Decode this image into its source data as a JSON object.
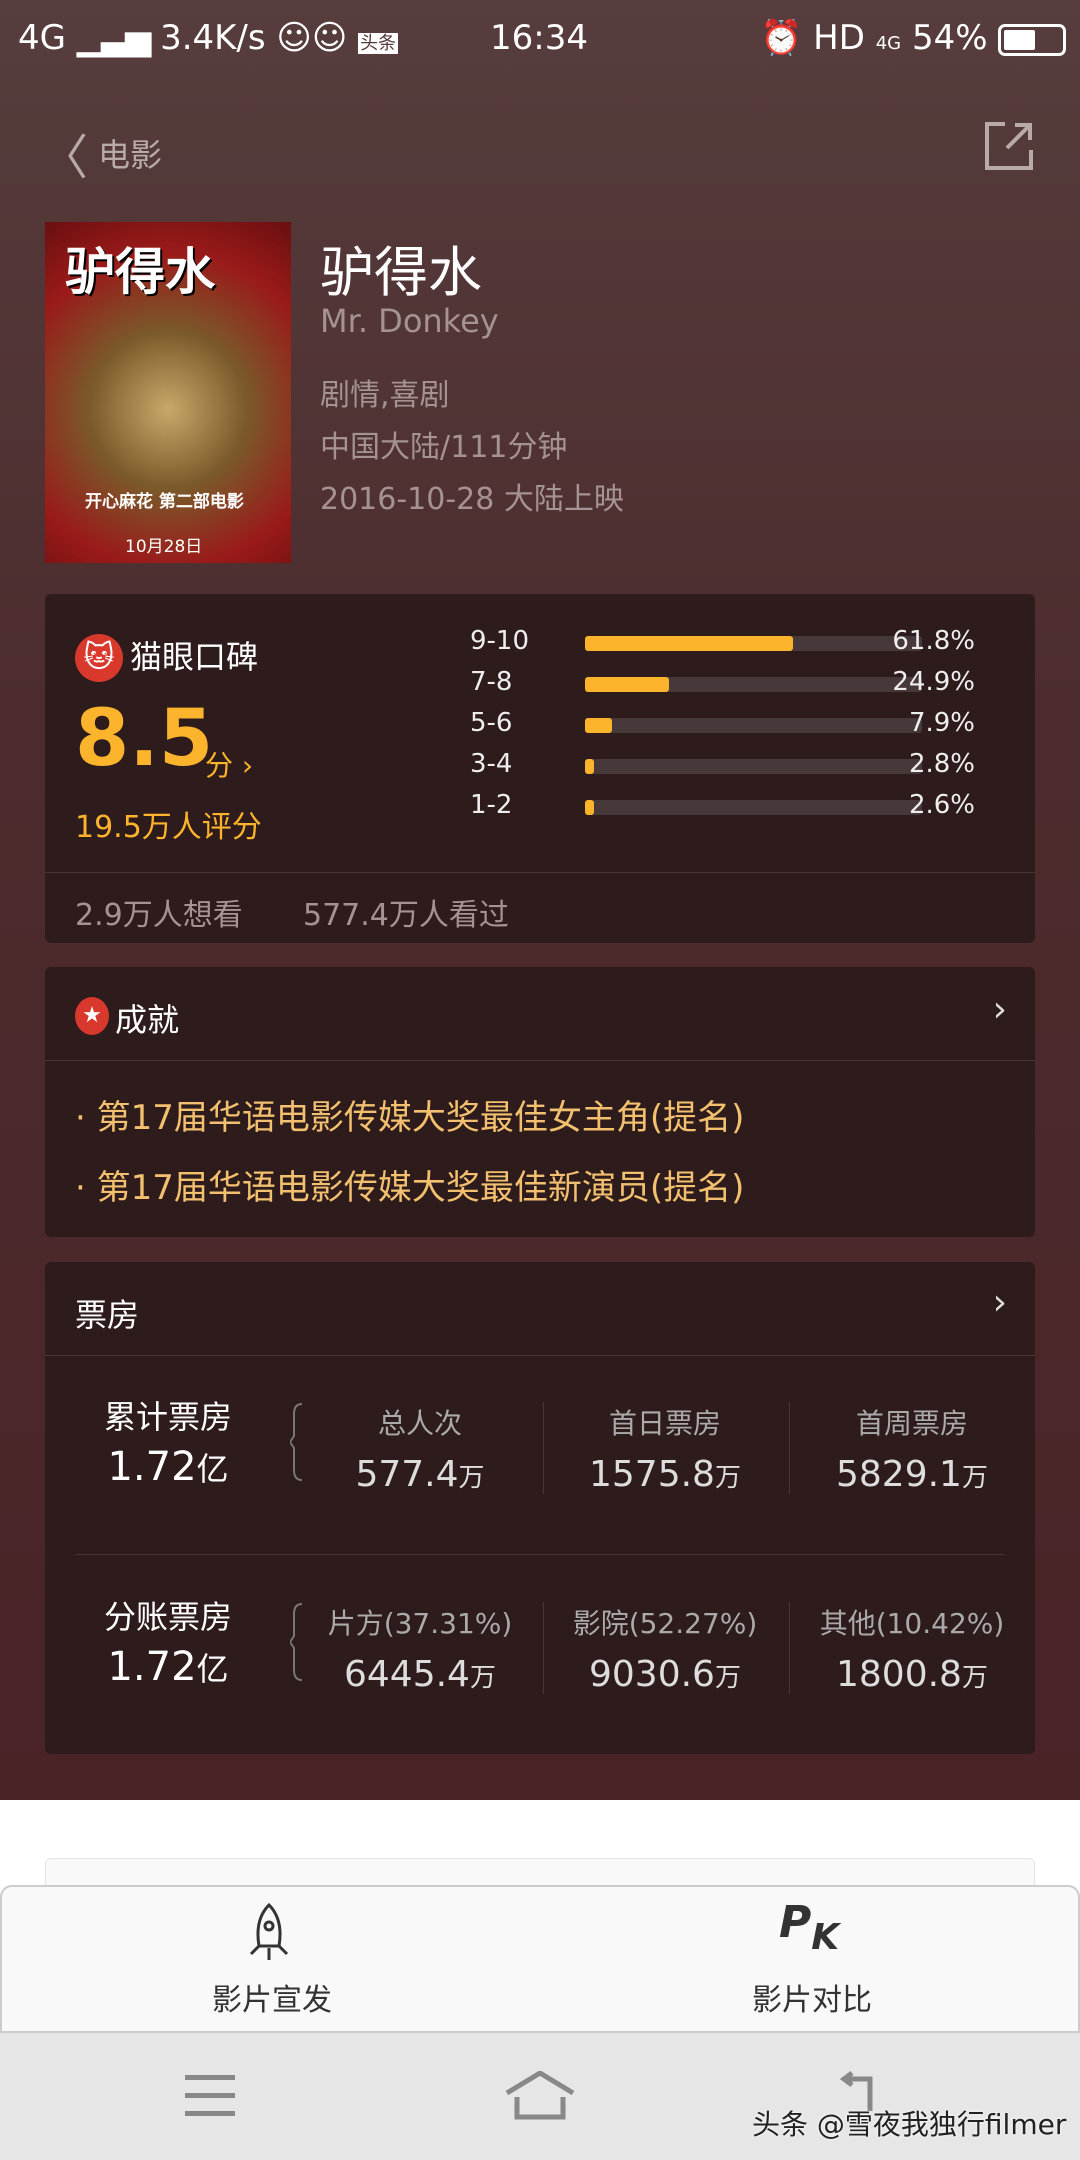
{
  "status_bar": {
    "network": "4G",
    "speed": "3.4K/s",
    "time": "16:34",
    "hd": "HD",
    "net2": "4G",
    "battery": "54%",
    "battery_level": 0.54,
    "app_badge": "头条"
  },
  "nav": {
    "back_label": "电影"
  },
  "movie": {
    "title": "驴得水",
    "english_title": "Mr. Donkey",
    "genres": "剧情,喜剧",
    "region_duration": "中国大陆/111分钟",
    "release": "2016-10-28 大陆上映",
    "poster_title": "驴得水",
    "poster_sub": "开心麻花 第二部电影",
    "poster_date": "10月28日"
  },
  "rating": {
    "source": "猫眼口碑",
    "score": "8.5",
    "score_unit": "分",
    "score_count": "19.5万人评分",
    "distribution": [
      {
        "range": "9-10",
        "percent": 61.8,
        "label": "61.8%"
      },
      {
        "range": "7-8",
        "percent": 24.9,
        "label": "24.9%"
      },
      {
        "range": "5-6",
        "percent": 7.9,
        "label": "7.9%"
      },
      {
        "range": "3-4",
        "percent": 2.8,
        "label": "2.8%"
      },
      {
        "range": "1-2",
        "percent": 2.6,
        "label": "2.6%"
      }
    ],
    "want": "2.9万人想看",
    "watched": "577.4万人看过"
  },
  "achievements": {
    "title": "成就",
    "items": [
      "第17届华语电影传媒大奖最佳女主角(提名)",
      "第17届华语电影传媒大奖最佳新演员(提名)"
    ]
  },
  "box_office": {
    "title": "票房",
    "total": {
      "label": "累计票房",
      "value": "1.72",
      "unit": "亿",
      "cols": [
        {
          "label": "总人次",
          "value": "577.4",
          "unit": "万"
        },
        {
          "label": "首日票房",
          "value": "1575.8",
          "unit": "万"
        },
        {
          "label": "首周票房",
          "value": "5829.1",
          "unit": "万"
        }
      ]
    },
    "split": {
      "label": "分账票房",
      "value": "1.72",
      "unit": "亿",
      "cols": [
        {
          "label": "片方(37.31%)",
          "value": "6445.4",
          "unit": "万"
        },
        {
          "label": "影院(52.27%)",
          "value": "9030.6",
          "unit": "万"
        },
        {
          "label": "其他(10.42%)",
          "value": "1800.8",
          "unit": "万"
        }
      ]
    }
  },
  "bottom_actions": [
    {
      "label": "影片宣发",
      "icon": "rocket-icon"
    },
    {
      "label": "影片对比",
      "icon": "pk-icon",
      "glyph_p": "P",
      "glyph_k": "K"
    }
  ],
  "watermark": "头条 @雪夜我独行filmer",
  "colors": {
    "accent": "#fbb42b",
    "card": "#2e1b1c",
    "achievement_text": "#f3c06f"
  }
}
